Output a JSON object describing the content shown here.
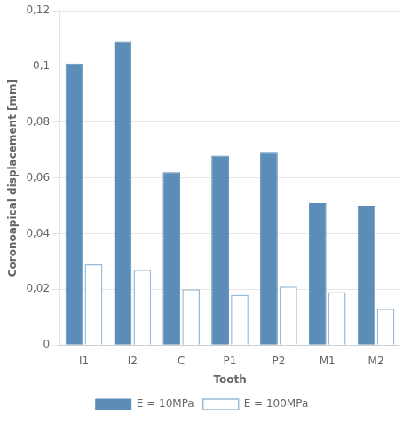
{
  "chart_data": {
    "type": "bar",
    "categories": [
      "I1",
      "I2",
      "C",
      "P1",
      "P2",
      "M1",
      "M2"
    ],
    "series": [
      {
        "name": "E = 10MPa",
        "color": "#5B8DB8",
        "values": [
          0.101,
          0.109,
          0.062,
          0.068,
          0.069,
          0.051,
          0.05
        ]
      },
      {
        "name": "E = 100MPa",
        "color": "#FFFFFF",
        "values": [
          0.029,
          0.027,
          0.02,
          0.018,
          0.021,
          0.019,
          0.013
        ]
      }
    ],
    "xlabel": "Tooth",
    "ylabel": "Coronoapical displacement [mm]",
    "ylim": [
      0,
      0.12
    ],
    "yticks": [
      0,
      {
        "value": 0.02,
        "label": "0,02"
      },
      {
        "value": 0.04,
        "label": "0,04"
      },
      {
        "value": 0.06,
        "label": "0,06"
      },
      {
        "value": 0.08,
        "label": "0,08"
      },
      {
        "value": 0.1,
        "label": "0,1"
      },
      {
        "value": 0.12,
        "label": "0,12"
      }
    ],
    "grid": true,
    "legend": "bottom"
  }
}
